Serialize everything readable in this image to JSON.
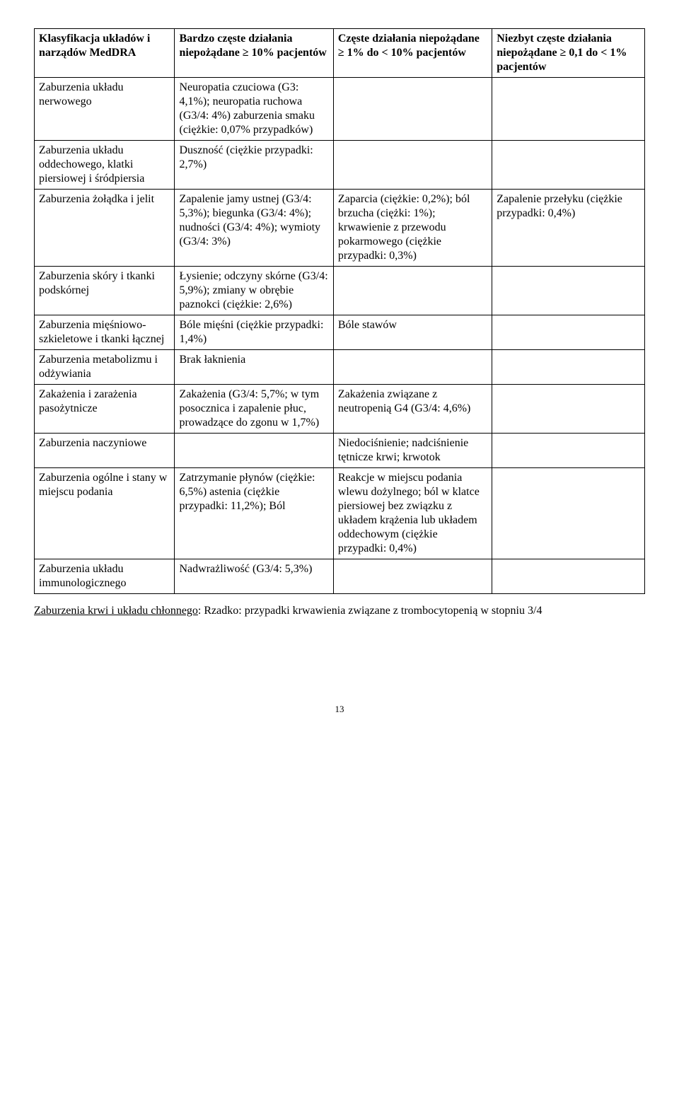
{
  "table": {
    "headers": {
      "c1": "Klasyfikacja układów i narządów MedDRA",
      "c2": "Bardzo częste działania niepożądane ≥ 10% pacjentów",
      "c3": "Częste działania niepożądane ≥ 1% do < 10% pacjentów",
      "c4": "Niezbyt częste działania niepożądane ≥ 0,1 do < 1% pacjentów"
    },
    "rows": [
      {
        "c1": "Zaburzenia układu nerwowego",
        "c2": "Neuropatia czuciowa (G3: 4,1%); neuropatia ruchowa (G3/4: 4%) zaburzenia smaku (ciężkie: 0,07% przypadków)",
        "c3": "",
        "c4": ""
      },
      {
        "c1": "Zaburzenia układu oddechowego, klatki piersiowej i śródpiersia",
        "c2": "Duszność (ciężkie przypadki: 2,7%)",
        "c3": "",
        "c4": ""
      },
      {
        "c1": "Zaburzenia żołądka i jelit",
        "c2": "Zapalenie jamy ustnej (G3/4: 5,3%); biegunka (G3/4: 4%); nudności (G3/4: 4%); wymioty (G3/4: 3%)",
        "c3": "Zaparcia (ciężkie: 0,2%); ból brzucha (ciężki: 1%); krwawienie z przewodu pokarmowego (ciężkie przypadki: 0,3%)",
        "c4": "Zapalenie przełyku (ciężkie przypadki: 0,4%)"
      },
      {
        "c1": "Zaburzenia skóry i tkanki podskórnej",
        "c2": "Łysienie; odczyny skórne (G3/4: 5,9%); zmiany w obrębie paznokci (ciężkie: 2,6%)",
        "c3": "",
        "c4": ""
      },
      {
        "c1": "Zaburzenia mięśniowo-szkieletowe i tkanki łącznej",
        "c2": "Bóle mięśni (ciężkie przypadki: 1,4%)",
        "c3": "Bóle stawów",
        "c4": ""
      },
      {
        "c1": "Zaburzenia metabolizmu i odżywiania",
        "c2": "Brak łaknienia",
        "c3": "",
        "c4": ""
      },
      {
        "c1": "Zakażenia i zarażenia pasożytnicze",
        "c2": "Zakażenia (G3/4: 5,7%; w tym posocznica i zapalenie płuc, prowadzące do zgonu w 1,7%)",
        "c3": "Zakażenia związane z neutropenią G4 (G3/4: 4,6%)",
        "c4": ""
      },
      {
        "c1": "Zaburzenia naczyniowe",
        "c2": "",
        "c3": "Niedociśnienie; nadciśnienie tętnicze krwi; krwotok",
        "c4": ""
      },
      {
        "c1": "Zaburzenia ogólne i stany w miejscu podania",
        "c2": "Zatrzymanie płynów (ciężkie: 6,5%) astenia (ciężkie przypadki: 11,2%); Ból",
        "c3": "Reakcje w miejscu podania wlewu dożylnego; ból w klatce piersiowej bez związku z układem krążenia lub układem oddechowym (ciężkie przypadki: 0,4%)",
        "c4": ""
      },
      {
        "c1": "Zaburzenia układu immunologicznego",
        "c2": "Nadwrażliwość (G3/4: 5,3%)",
        "c3": "",
        "c4": ""
      }
    ]
  },
  "footer": {
    "underlined": "Zaburzenia krwi i układu chłonnego",
    "rest": ": Rzadko: przypadki krwawienia związane z trombocytopenią w stopniu 3/4"
  },
  "pageNumber": "13"
}
